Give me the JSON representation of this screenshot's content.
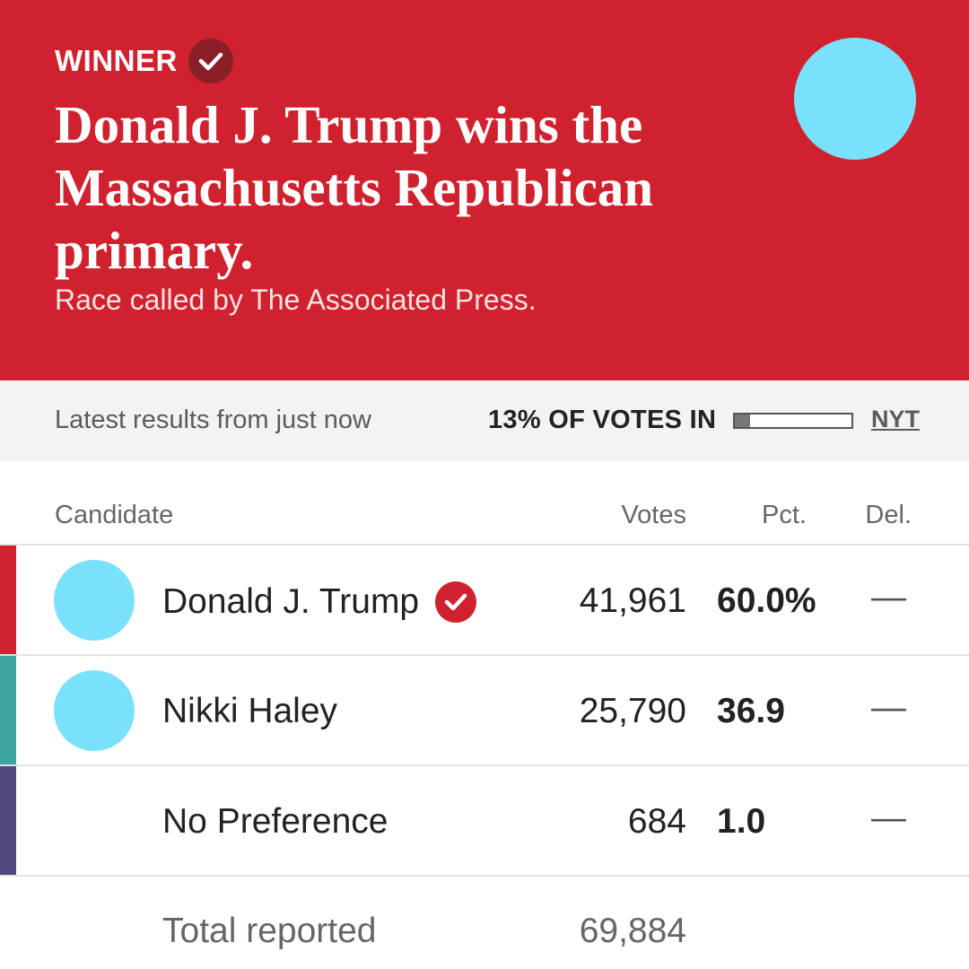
{
  "colors": {
    "banner_bg": "#d0212e",
    "winner_check_bg": "#8a1f27",
    "status_bg": "#f3f3f3",
    "trump_stripe": "#d0212e",
    "haley_stripe": "#3da4a1",
    "nopref_stripe": "#52467f",
    "avatar_placeholder": "#7ae1fc"
  },
  "banner": {
    "winner_label": "WINNER",
    "winner_icon": "check-icon",
    "headline": "Donald J. Trump wins the Massachusetts Republican primary.",
    "subhead": "Race called by The Associated Press."
  },
  "status": {
    "latest": "Latest results from just now",
    "votes_in": "13% OF VOTES IN",
    "votes_in_fraction": 0.13,
    "source_link": "NYT"
  },
  "table": {
    "headers": {
      "candidate": "Candidate",
      "votes": "Votes",
      "pct": "Pct.",
      "del": "Del."
    },
    "rows": [
      {
        "name": "Donald J. Trump",
        "winner": true,
        "has_photo": true,
        "votes": "41,961",
        "pct": "60.0%",
        "del": "—"
      },
      {
        "name": "Nikki Haley",
        "winner": false,
        "has_photo": true,
        "votes": "25,790",
        "pct": "36.9",
        "del": "—"
      },
      {
        "name": "No Preference",
        "winner": false,
        "has_photo": false,
        "votes": "684",
        "pct": "1.0",
        "del": "—"
      }
    ],
    "total": {
      "label": "Total reported",
      "votes": "69,884"
    }
  }
}
